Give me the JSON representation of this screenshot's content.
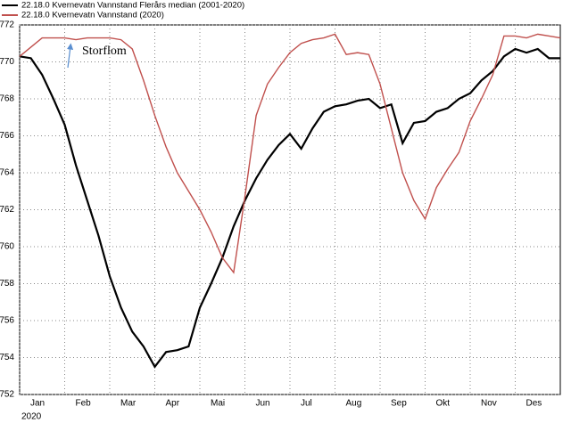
{
  "chart_data": {
    "type": "line",
    "legend": "top-left",
    "annotation": "Storflom",
    "year_label": "2020",
    "x": [
      0,
      0.25,
      0.5,
      0.75,
      1,
      1.25,
      1.5,
      1.75,
      2,
      2.25,
      2.5,
      2.75,
      3,
      3.25,
      3.5,
      3.75,
      4,
      4.25,
      4.5,
      4.75,
      5,
      5.25,
      5.5,
      5.75,
      6,
      6.25,
      6.5,
      6.75,
      7,
      7.25,
      7.5,
      7.75,
      8,
      8.25,
      8.5,
      8.75,
      9,
      9.25,
      9.5,
      9.75,
      10,
      10.25,
      10.5,
      10.75,
      11,
      11.25,
      11.5,
      11.75,
      12
    ],
    "xlim": [
      0,
      12
    ],
    "xticks": [
      {
        "value": 0,
        "label": "Jan"
      },
      {
        "value": 1,
        "label": "Feb"
      },
      {
        "value": 2,
        "label": "Mar"
      },
      {
        "value": 3,
        "label": "Apr"
      },
      {
        "value": 4,
        "label": "Mai"
      },
      {
        "value": 5,
        "label": "Jun"
      },
      {
        "value": 6,
        "label": "Jul"
      },
      {
        "value": 7,
        "label": "Aug"
      },
      {
        "value": 8,
        "label": "Sep"
      },
      {
        "value": 9,
        "label": "Okt"
      },
      {
        "value": 10,
        "label": "Nov"
      },
      {
        "value": 11,
        "label": "Des"
      }
    ],
    "ylim": [
      752,
      772
    ],
    "yticks": [
      752,
      754,
      756,
      758,
      760,
      762,
      764,
      766,
      768,
      770,
      772
    ],
    "grid": true,
    "series": [
      {
        "name": "22.18.0 Kvernevatn Vannstand Flerårs median (2001-2020)",
        "color": "#000000",
        "values": [
          770.3,
          770.2,
          769.3,
          768.0,
          766.6,
          764.4,
          762.5,
          760.6,
          758.4,
          756.7,
          755.4,
          754.6,
          753.5,
          754.3,
          754.4,
          754.6,
          756.7,
          758.0,
          759.4,
          761.1,
          762.5,
          763.7,
          764.7,
          765.5,
          766.1,
          765.3,
          766.4,
          767.3,
          767.6,
          767.7,
          767.9,
          768.0,
          767.5,
          767.7,
          765.6,
          766.7,
          766.8,
          767.3,
          767.5,
          768.0,
          768.3,
          769.0,
          769.5,
          770.3,
          770.7,
          770.5,
          770.7,
          770.2,
          770.2
        ]
      },
      {
        "name": "22.18.0 Kvernevatn Vannstand (2020)",
        "color": "#c0504d",
        "values": [
          770.3,
          770.8,
          771.3,
          771.3,
          771.3,
          771.2,
          771.3,
          771.3,
          771.3,
          771.2,
          770.7,
          769.0,
          767.1,
          765.4,
          764.0,
          763.0,
          762.0,
          760.8,
          759.4,
          758.6,
          762.7,
          767.1,
          768.8,
          769.7,
          770.5,
          771.0,
          771.2,
          771.3,
          771.5,
          770.4,
          770.5,
          770.4,
          768.8,
          766.4,
          764.0,
          762.5,
          761.5,
          763.2,
          764.2,
          765.1,
          766.8,
          768.0,
          769.3,
          771.4,
          771.4,
          771.3,
          771.5,
          771.4,
          771.3
        ]
      }
    ]
  }
}
